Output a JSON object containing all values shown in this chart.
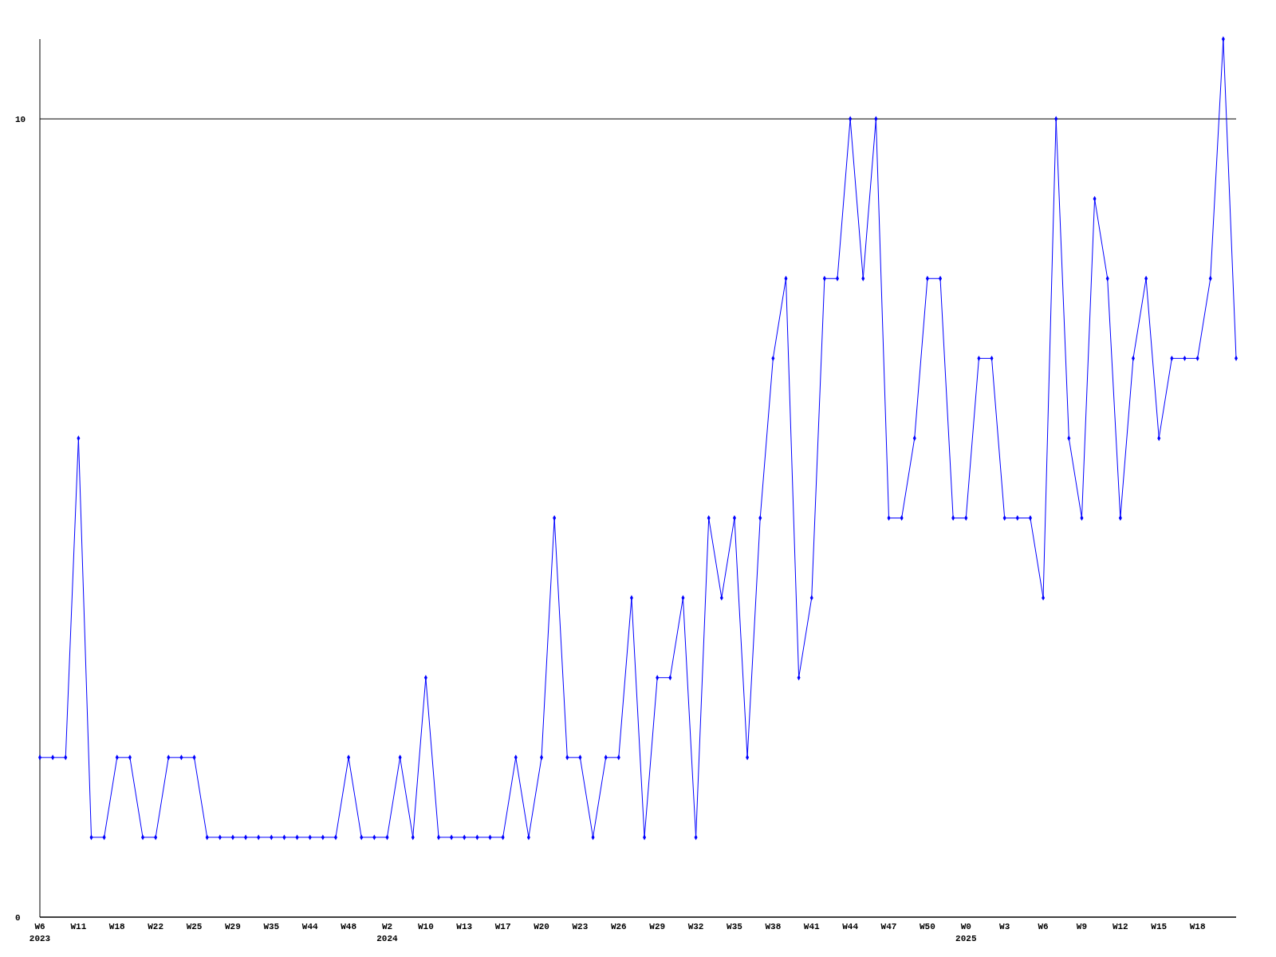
{
  "chart_data": {
    "type": "line",
    "categories": [
      "W6\n2023",
      null,
      null,
      "W11",
      null,
      null,
      "W18",
      null,
      null,
      "W22",
      null,
      null,
      "W25",
      null,
      null,
      "W29",
      null,
      null,
      "W35",
      null,
      null,
      "W44",
      null,
      null,
      "W48",
      null,
      null,
      "W2\n2024",
      null,
      null,
      "W10",
      null,
      null,
      "W13",
      null,
      null,
      "W17",
      null,
      null,
      "W20",
      null,
      null,
      "W23",
      null,
      null,
      "W26",
      null,
      null,
      "W29",
      null,
      null,
      "W32",
      null,
      null,
      "W35",
      null,
      null,
      "W38",
      null,
      null,
      "W41",
      null,
      null,
      "W44",
      null,
      null,
      "W47",
      null,
      null,
      "W50",
      null,
      null,
      "W0\n2025",
      null,
      null,
      "W3",
      null,
      null,
      "W6",
      null,
      null,
      "W9",
      null,
      null,
      "W12",
      null,
      null,
      "W15",
      null,
      null,
      "W18",
      null,
      null,
      null
    ],
    "values": [
      2,
      2,
      2,
      6,
      1,
      1,
      2,
      2,
      1,
      1,
      2,
      2,
      2,
      1,
      1,
      1,
      1,
      1,
      1,
      1,
      1,
      1,
      1,
      1,
      2,
      1,
      1,
      1,
      2,
      1,
      3,
      1,
      1,
      1,
      1,
      1,
      1,
      2,
      1,
      2,
      5,
      2,
      2,
      1,
      2,
      2,
      4,
      1,
      3,
      3,
      4,
      1,
      5,
      4,
      5,
      2,
      5,
      7,
      8,
      3,
      4,
      8,
      8,
      10,
      8,
      10,
      5,
      5,
      6,
      8,
      8,
      5,
      5,
      7,
      7,
      5,
      5,
      5,
      4,
      10,
      6,
      5,
      9,
      8,
      5,
      7,
      8,
      6,
      7,
      7,
      7,
      8,
      11,
      7
    ],
    "color": "#0000ff",
    "ylim": [
      0,
      11
    ],
    "yticks": [
      0,
      10
    ],
    "grid": "y",
    "marker": "diamond"
  }
}
